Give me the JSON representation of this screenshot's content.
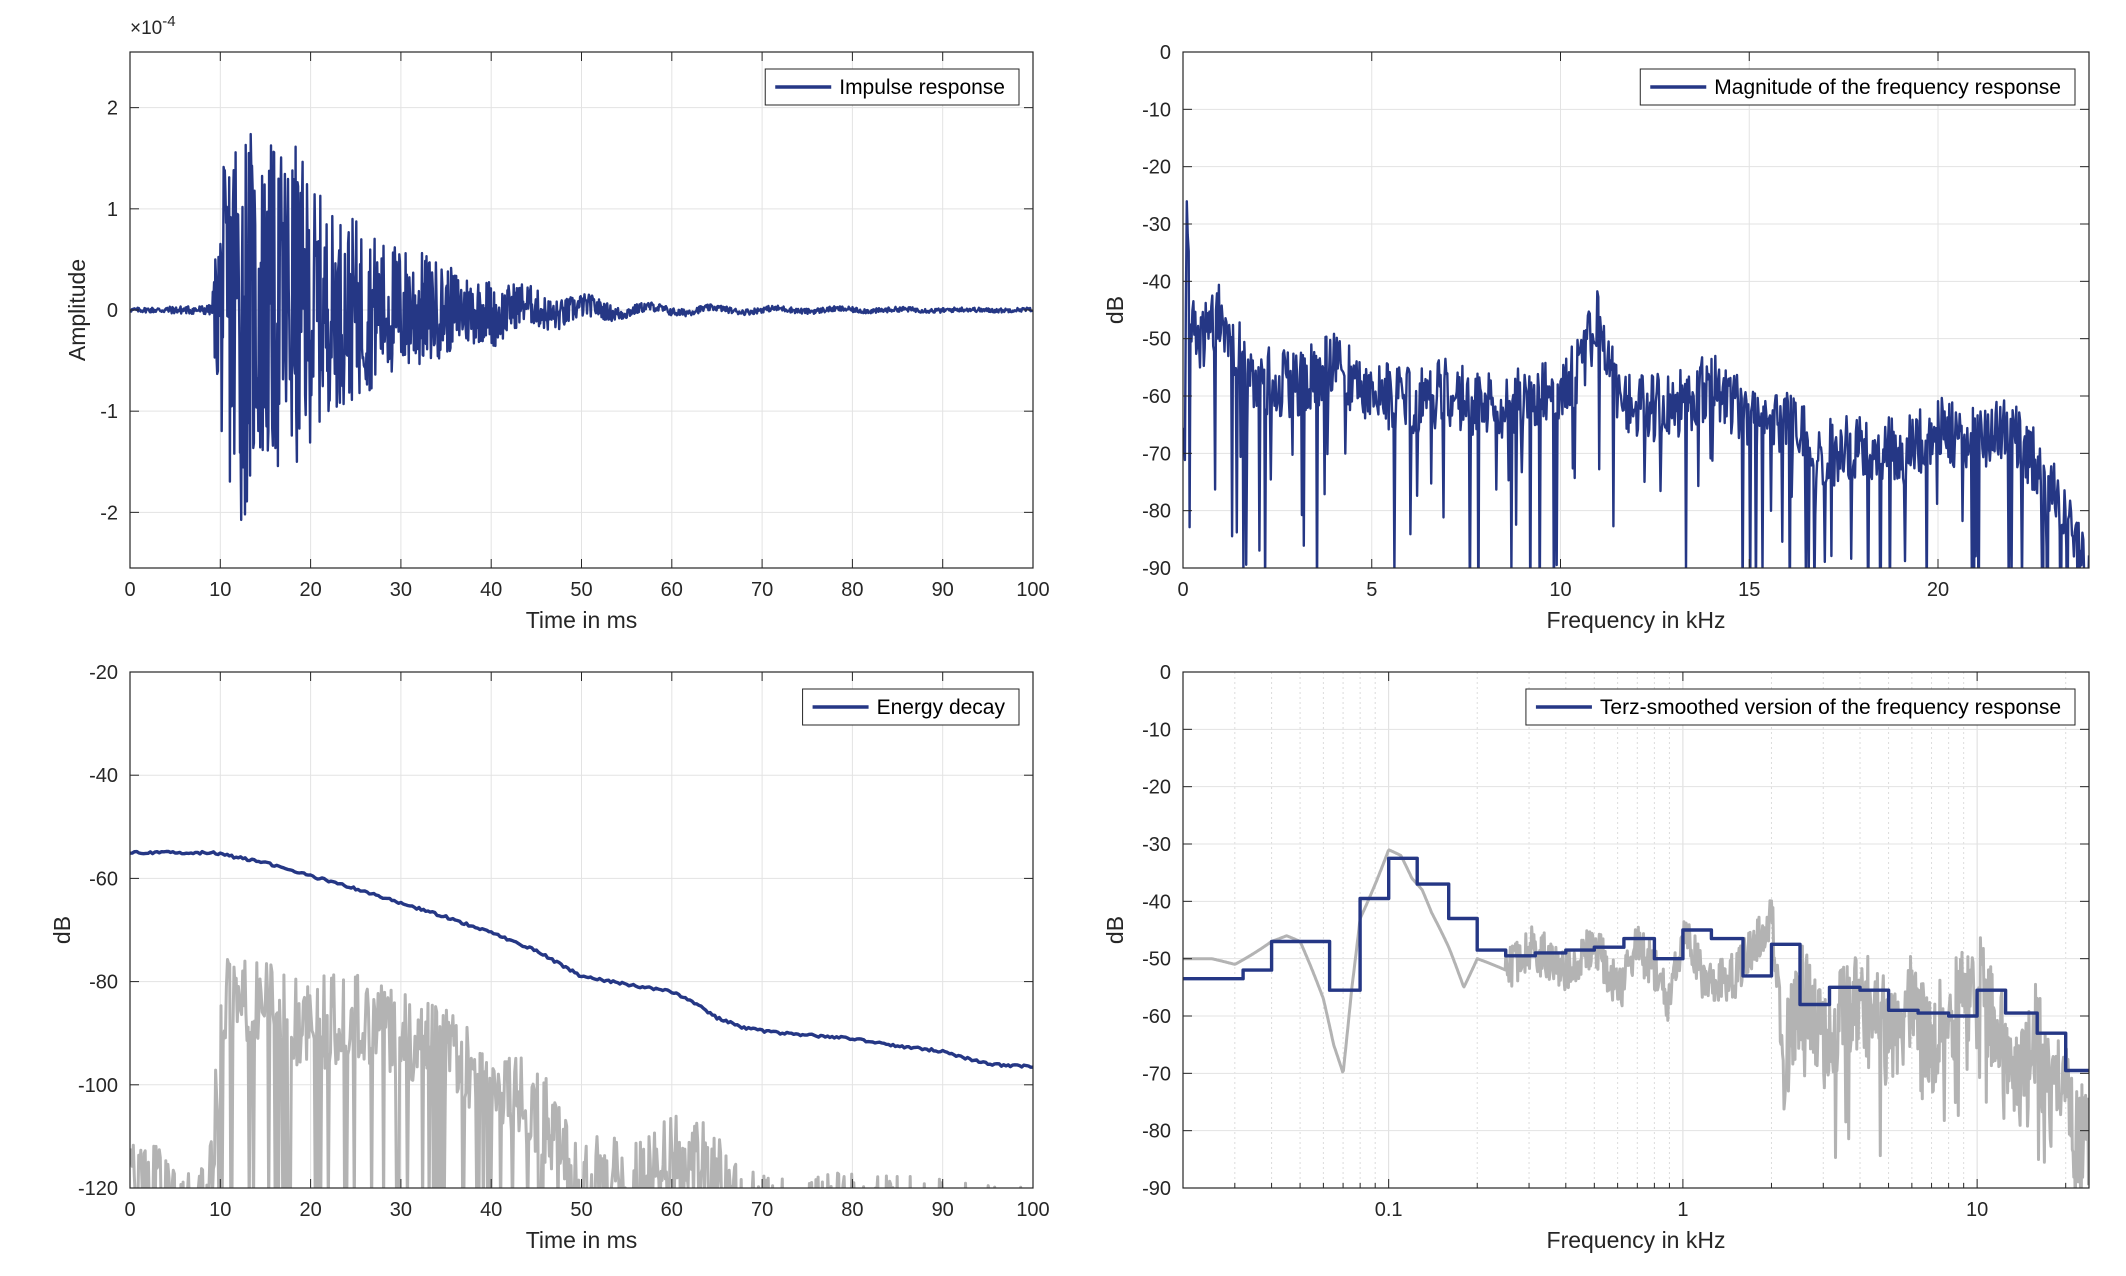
{
  "chart_data": [
    {
      "id": "impulse",
      "type": "line",
      "xlabel": "Time in ms",
      "ylabel": "Amplitude",
      "xlim": [
        0,
        100
      ],
      "ylim": [
        -2.55,
        2.55
      ],
      "xticks": [
        0,
        10,
        20,
        30,
        40,
        50,
        60,
        70,
        80,
        90,
        100
      ],
      "yticks": [
        -2,
        -1,
        0,
        1,
        2
      ],
      "y_exponent": "×10",
      "y_exponent_power": "-4",
      "grid": true,
      "legend_position": "top-right",
      "series": [
        {
          "name": "Impulse response",
          "color": "#253785",
          "envelope": [
            [
              0,
              0.02
            ],
            [
              9,
              0.05
            ],
            [
              10,
              1.2
            ],
            [
              11,
              1.8
            ],
            [
              12,
              2.3
            ],
            [
              14,
              1.6
            ],
            [
              18,
              1.7
            ],
            [
              20,
              1.3
            ],
            [
              22,
              1.0
            ],
            [
              25,
              0.9
            ],
            [
              28,
              0.7
            ],
            [
              32,
              0.6
            ],
            [
              36,
              0.4
            ],
            [
              40,
              0.3
            ],
            [
              44,
              0.2
            ],
            [
              50,
              0.12
            ],
            [
              56,
              0.05
            ],
            [
              65,
              0.03
            ],
            [
              100,
              0.02
            ]
          ],
          "x": [
            0,
            5,
            9,
            9.5,
            10,
            10.4,
            10.8,
            11,
            11.3,
            11.6,
            12,
            12.3,
            12.6,
            13,
            13.4,
            14,
            14.6,
            15.2,
            16,
            16.8,
            17.5,
            18,
            18.6,
            19.3,
            20,
            20.7,
            21.5,
            22.3,
            23,
            24,
            25,
            26,
            27,
            28,
            29,
            30,
            31,
            32,
            33,
            34,
            35,
            36,
            37,
            38,
            39,
            40,
            42,
            44,
            46,
            48,
            50,
            52,
            54,
            56,
            58,
            60,
            65,
            70,
            80,
            90,
            100
          ],
          "y": [
            -0.03,
            0.01,
            0.02,
            0.3,
            1.2,
            -0.4,
            1.6,
            -1.3,
            1.3,
            -1.9,
            1.8,
            -2.3,
            1.0,
            -1.6,
            0.9,
            -1.2,
            1.1,
            -0.9,
            1.3,
            -0.8,
            1.7,
            -0.6,
            1.1,
            -1.0,
            0.6,
            -0.9,
            0.8,
            -0.7,
            0.5,
            -0.6,
            0.9,
            -0.4,
            0.7,
            -0.5,
            0.5,
            -0.4,
            0.6,
            -0.5,
            0.4,
            -0.3,
            0.3,
            -0.4,
            0.3,
            -0.2,
            0.35,
            0.1,
            -0.15,
            0.0,
            0.12,
            0.08,
            0.1,
            -0.05,
            0.02,
            -0.03,
            0.0,
            -0.02,
            0.01,
            0.0,
            0.01,
            0.0,
            0.0
          ]
        }
      ]
    },
    {
      "id": "magnitude",
      "type": "line",
      "xlabel": "Frequency in kHz",
      "ylabel": "dB",
      "xlim": [
        0,
        24
      ],
      "ylim": [
        -90,
        0
      ],
      "xticks": [
        0,
        5,
        10,
        15,
        20
      ],
      "yticks": [
        0,
        -10,
        -20,
        -30,
        -40,
        -50,
        -60,
        -70,
        -80,
        -90
      ],
      "grid": true,
      "legend_position": "top-right",
      "series": [
        {
          "name": "Magnitude of the frequency response",
          "color": "#253785",
          "x": [
            0,
            0.1,
            0.2,
            0.5,
            1,
            1.5,
            2,
            3,
            4,
            5,
            6,
            7,
            8,
            9,
            10,
            10.5,
            11,
            11.5,
            12,
            13,
            14,
            15,
            16,
            17,
            18,
            19,
            20,
            21,
            22,
            23,
            24
          ],
          "y": [
            -73,
            -32,
            -48,
            -50,
            -46,
            -53,
            -57,
            -58,
            -55,
            -59,
            -61,
            -59,
            -62,
            -61,
            -59,
            -55,
            -47,
            -58,
            -62,
            -62,
            -58,
            -63,
            -64,
            -70,
            -69,
            -70,
            -66,
            -68,
            -66,
            -75,
            -89
          ]
        }
      ]
    },
    {
      "id": "energy-decay",
      "type": "line",
      "xlabel": "Time in ms",
      "ylabel": "dB",
      "xlim": [
        0,
        100
      ],
      "ylim": [
        -120,
        -20
      ],
      "xticks": [
        0,
        10,
        20,
        30,
        40,
        50,
        60,
        70,
        80,
        90,
        100
      ],
      "yticks": [
        -20,
        -40,
        -60,
        -80,
        -100,
        -120
      ],
      "grid": true,
      "legend_position": "top-right",
      "series": [
        {
          "name": "Energy decay",
          "color": "#253785",
          "x": [
            0,
            9,
            10,
            15,
            20,
            25,
            30,
            35,
            40,
            45,
            48,
            50,
            55,
            60,
            62,
            65,
            68,
            72,
            80,
            85,
            90,
            95,
            100
          ],
          "y": [
            -55,
            -55,
            -55.3,
            -57,
            -59.5,
            -62,
            -64.8,
            -67.5,
            -70.5,
            -74,
            -77,
            -79,
            -80.5,
            -82,
            -83.5,
            -87,
            -89,
            -90,
            -91,
            -92.5,
            -93.5,
            -96,
            -96.5
          ]
        },
        {
          "color": "#b3b3b3",
          "envelope": [
            [
              0,
              -108
            ],
            [
              3,
              -112
            ],
            [
              6,
              -118
            ],
            [
              9,
              -110
            ],
            [
              10,
              -80
            ],
            [
              11,
              -74
            ],
            [
              15,
              -76
            ],
            [
              20,
              -80
            ],
            [
              24,
              -77
            ],
            [
              28,
              -80
            ],
            [
              32,
              -83
            ],
            [
              36,
              -86
            ],
            [
              40,
              -90
            ],
            [
              44,
              -94
            ],
            [
              46,
              -98
            ],
            [
              48,
              -104
            ],
            [
              50,
              -108
            ],
            [
              55,
              -111
            ],
            [
              60,
              -106
            ],
            [
              63,
              -106
            ],
            [
              65,
              -110
            ],
            [
              68,
              -115
            ],
            [
              72,
              -118
            ],
            [
              80,
              -116
            ],
            [
              82,
              -117
            ],
            [
              90,
              -118
            ],
            [
              93,
              -119
            ],
            [
              100,
              -120
            ]
          ]
        }
      ]
    },
    {
      "id": "terz",
      "type": "line",
      "xlabel": "Frequency in kHz",
      "ylabel": "dB",
      "x_scale": "log",
      "xlim": [
        0.02,
        24
      ],
      "ylim": [
        -90,
        0
      ],
      "xticks": [
        0.1,
        1,
        10
      ],
      "xtick_labels": [
        "0.1",
        "1",
        "10"
      ],
      "yticks": [
        0,
        -10,
        -20,
        -30,
        -40,
        -50,
        -60,
        -70,
        -80,
        -90
      ],
      "grid": true,
      "legend_position": "top-right",
      "series": [
        {
          "name": "Terz-smoothed version of the frequency response",
          "color": "#253785",
          "step": true,
          "x": [
            0.02,
            0.032,
            0.04,
            0.05,
            0.063,
            0.08,
            0.1,
            0.125,
            0.16,
            0.2,
            0.25,
            0.315,
            0.4,
            0.5,
            0.63,
            0.8,
            1,
            1.25,
            1.6,
            2,
            2.5,
            3.15,
            4,
            5,
            6.3,
            8,
            10,
            12.5,
            16,
            20,
            24
          ],
          "y": [
            -53.5,
            -52,
            -47,
            -47,
            -55.5,
            -39.5,
            -32.5,
            -37,
            -43,
            -48.5,
            -49.5,
            -49,
            -48.5,
            -48,
            -46.5,
            -50,
            -45,
            -46.5,
            -53,
            -47.5,
            -58,
            -55,
            -55.5,
            -59,
            -59.5,
            -60,
            -55.5,
            -59.5,
            -63,
            -69.5,
            -69.5
          ]
        },
        {
          "color": "#b3b3b3",
          "x": [
            0.02,
            0.025,
            0.03,
            0.035,
            0.04,
            0.045,
            0.05,
            0.055,
            0.06,
            0.065,
            0.07,
            0.075,
            0.08,
            0.09,
            0.1,
            0.11,
            0.12,
            0.13,
            0.14,
            0.16,
            0.18,
            0.2,
            0.25,
            0.3,
            0.35,
            0.4,
            0.5,
            0.6,
            0.7,
            0.8,
            0.9,
            1,
            1.2,
            1.5,
            2,
            2.2,
            2.5,
            3,
            3.5,
            4,
            5,
            6,
            7,
            8,
            10,
            12,
            14,
            16,
            18,
            20,
            22,
            24
          ],
          "y": [
            -50,
            -50,
            -51,
            -49,
            -47,
            -46,
            -47,
            -52,
            -57,
            -65,
            -70,
            -55,
            -43,
            -37,
            -31,
            -32,
            -36,
            -38,
            -42,
            -48,
            -55,
            -50,
            -52,
            -48,
            -50,
            -52,
            -47,
            -56,
            -48,
            -52,
            -58,
            -45,
            -55,
            -53,
            -42,
            -68,
            -56,
            -64,
            -60,
            -57,
            -63,
            -58,
            -65,
            -60,
            -54,
            -64,
            -72,
            -62,
            -76,
            -68,
            -80,
            -82
          ]
        }
      ]
    }
  ]
}
